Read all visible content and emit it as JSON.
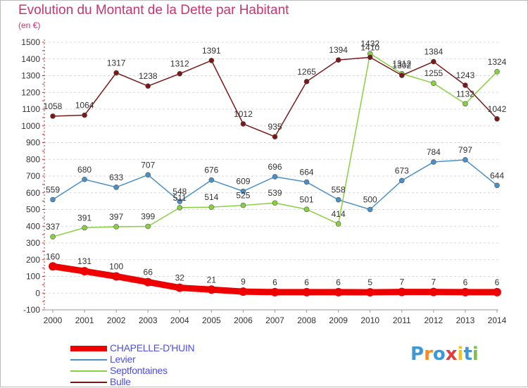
{
  "title": "Evolution du Montant de la Dette par Habitant",
  "unit": "(en €)",
  "logo": {
    "letters": [
      "P",
      "r",
      "o",
      "x",
      "i",
      "t",
      "i"
    ],
    "colors": [
      "#3a9ad9",
      "#f28c28",
      "#3a9ad9",
      "#e23c3c",
      "#f2c318",
      "#3a9ad9",
      "#7cc242"
    ]
  },
  "chart_data": {
    "type": "line",
    "x": [
      "2000",
      "2001",
      "2002",
      "2003",
      "2004",
      "2005",
      "2006",
      "2007",
      "2008",
      "2009",
      "2010",
      "2011",
      "2012",
      "2013",
      "2014"
    ],
    "ylim": [
      -100,
      1500
    ],
    "yticks": [
      "-100",
      "0",
      "100",
      "200",
      "300",
      "400",
      "500",
      "600",
      "700",
      "800",
      "900",
      "1000",
      "1100",
      "1200",
      "1300",
      "1400",
      "1500"
    ],
    "grid": "horizontal dashed",
    "legend": "bottom-left",
    "series": [
      {
        "name": "CHAPELLE-D'HUIN",
        "color": "#ee0000",
        "thick": true,
        "values": [
          160,
          131,
          100,
          66,
          32,
          21,
          9,
          6,
          6,
          6,
          5,
          7,
          7,
          6,
          6
        ],
        "labels": [
          "160",
          "131",
          "100",
          "66",
          "32",
          "21",
          "9",
          "6",
          "6",
          "6",
          "5",
          "7",
          "7",
          "6",
          "6"
        ]
      },
      {
        "name": "Levier",
        "color": "#4a90c8",
        "thick": false,
        "values": [
          559,
          680,
          633,
          707,
          548,
          676,
          609,
          696,
          664,
          558,
          500,
          673,
          784,
          797,
          644
        ],
        "labels": [
          "559",
          "680",
          "633",
          "707",
          "548",
          "676",
          "609",
          "696",
          "664",
          "558",
          "500",
          "673",
          "784",
          "797",
          "644"
        ]
      },
      {
        "name": "Septfontaines",
        "color": "#88d040",
        "thick": false,
        "values": [
          337,
          391,
          397,
          399,
          511,
          514,
          525,
          539,
          501,
          414,
          1432,
          1312,
          1255,
          1132,
          1324
        ],
        "labels": [
          "337",
          "391",
          "397",
          "399",
          "511",
          "514",
          "525",
          "539",
          "501",
          "414",
          "1432",
          "1312",
          "1255",
          "1132",
          "1324"
        ]
      },
      {
        "name": "Bulle",
        "color": "#7a1818",
        "thick": false,
        "values": [
          1058,
          1064,
          1317,
          1238,
          1312,
          1391,
          1012,
          935,
          1265,
          1394,
          1410,
          1302,
          1384,
          1243,
          1042
        ],
        "labels": [
          "1058",
          "1064",
          "1317",
          "1238",
          "1312",
          "1391",
          "1012",
          "935",
          "1265",
          "1394",
          "1410",
          "1302",
          "1384",
          "1243",
          "1042"
        ]
      }
    ]
  }
}
